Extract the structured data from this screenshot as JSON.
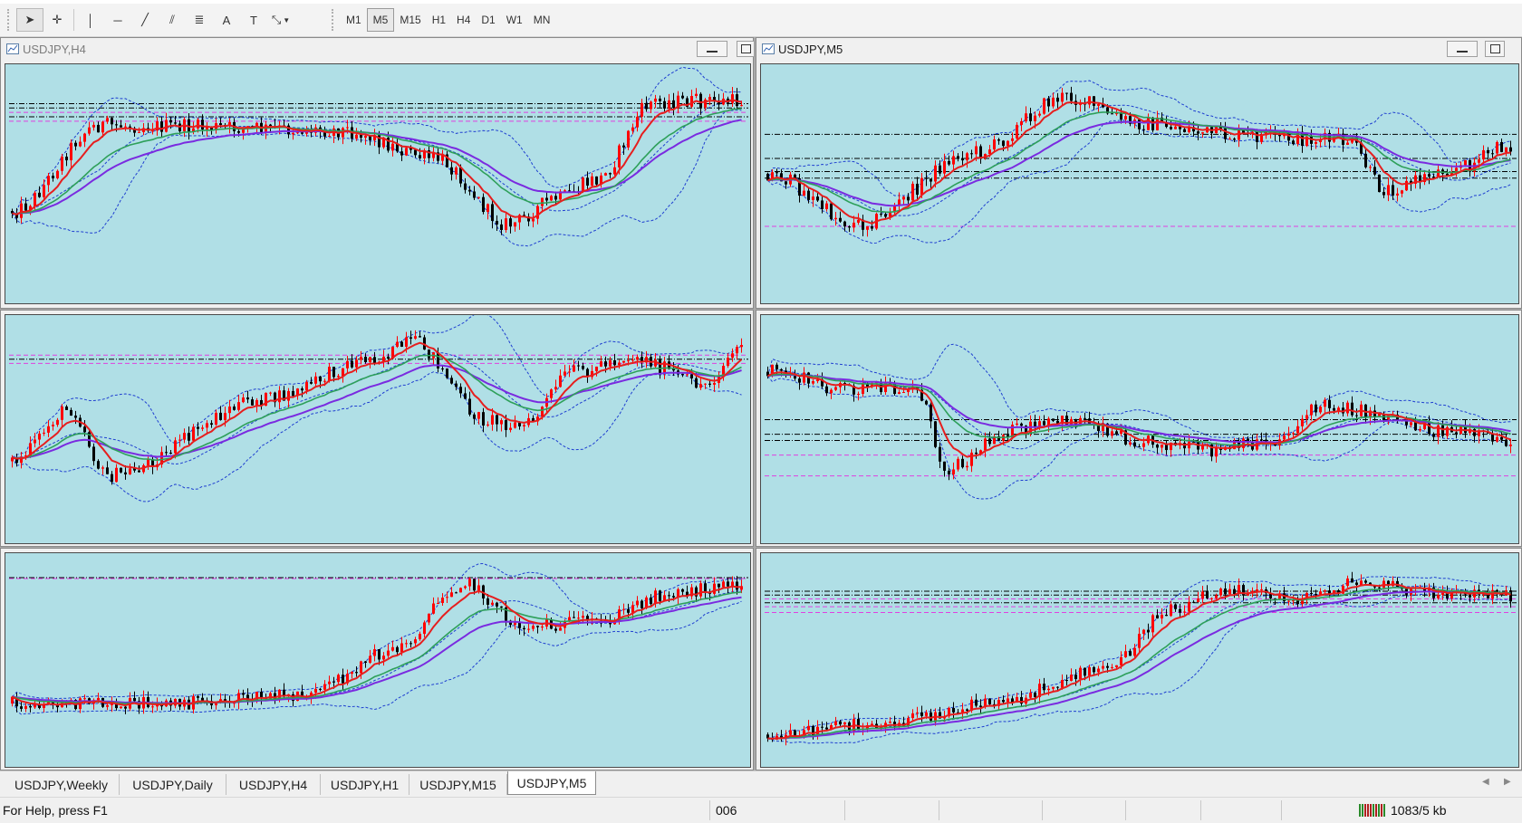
{
  "toolbar": {
    "tools": [
      {
        "name": "cursor",
        "glyph": "➤"
      },
      {
        "name": "crosshair",
        "glyph": "✛"
      },
      {
        "name": "vertical-line",
        "glyph": "│"
      },
      {
        "name": "horizontal-line",
        "glyph": "─"
      },
      {
        "name": "trendline",
        "glyph": "╱"
      },
      {
        "name": "equidistant-channel",
        "glyph": "⫽"
      },
      {
        "name": "fibonacci",
        "glyph": "≣"
      },
      {
        "name": "text",
        "glyph": "A"
      },
      {
        "name": "text-label",
        "glyph": "T"
      },
      {
        "name": "arrows",
        "glyph": "⤡"
      }
    ],
    "timeframes": [
      "M1",
      "M5",
      "M15",
      "H1",
      "H4",
      "D1",
      "W1",
      "MN"
    ],
    "active_timeframe": "M5"
  },
  "charts": {
    "h4": {
      "title": "USDJPY,H4"
    },
    "m5": {
      "title": "USDJPY,M5"
    }
  },
  "tabs": [
    "USDJPY,Weekly",
    "USDJPY,Daily",
    "USDJPY,H4",
    "USDJPY,H1",
    "USDJPY,M15",
    "USDJPY,M5"
  ],
  "active_tab": "USDJPY,M5",
  "status": {
    "help_text": "For Help, press F1",
    "profile": "006",
    "traffic": "1083/5 kb"
  },
  "colors": {
    "plot_bg": "#b0dfe6",
    "bull_candle": "#ff0000",
    "bear_candle": "#000000",
    "ma_fast": "#e61e1e",
    "ma_mid": "#2ea05a",
    "ma_slow": "#7a2be0",
    "bands": "#1f3fd0",
    "levels_black": "#000000",
    "levels_magenta": "#e040e0"
  }
}
